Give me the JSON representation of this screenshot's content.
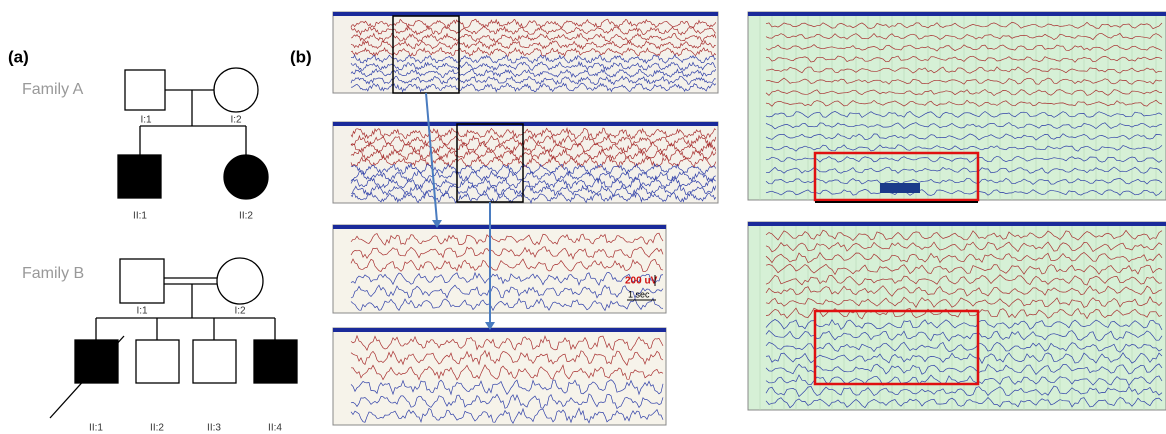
{
  "figure": {
    "panel_a": {
      "label": "(a)",
      "family_a": {
        "title": "Family A",
        "members": [
          "I:1",
          "I:2",
          "II:1",
          "II:2"
        ]
      },
      "family_b": {
        "title": "Family B",
        "members": [
          "I:1",
          "I:2",
          "II:1",
          "II:2",
          "II:3",
          "II:4"
        ]
      }
    },
    "panel_b": {
      "label": "(b)",
      "scale_amplitude": "200 uV",
      "scale_time": "1 sec"
    }
  }
}
